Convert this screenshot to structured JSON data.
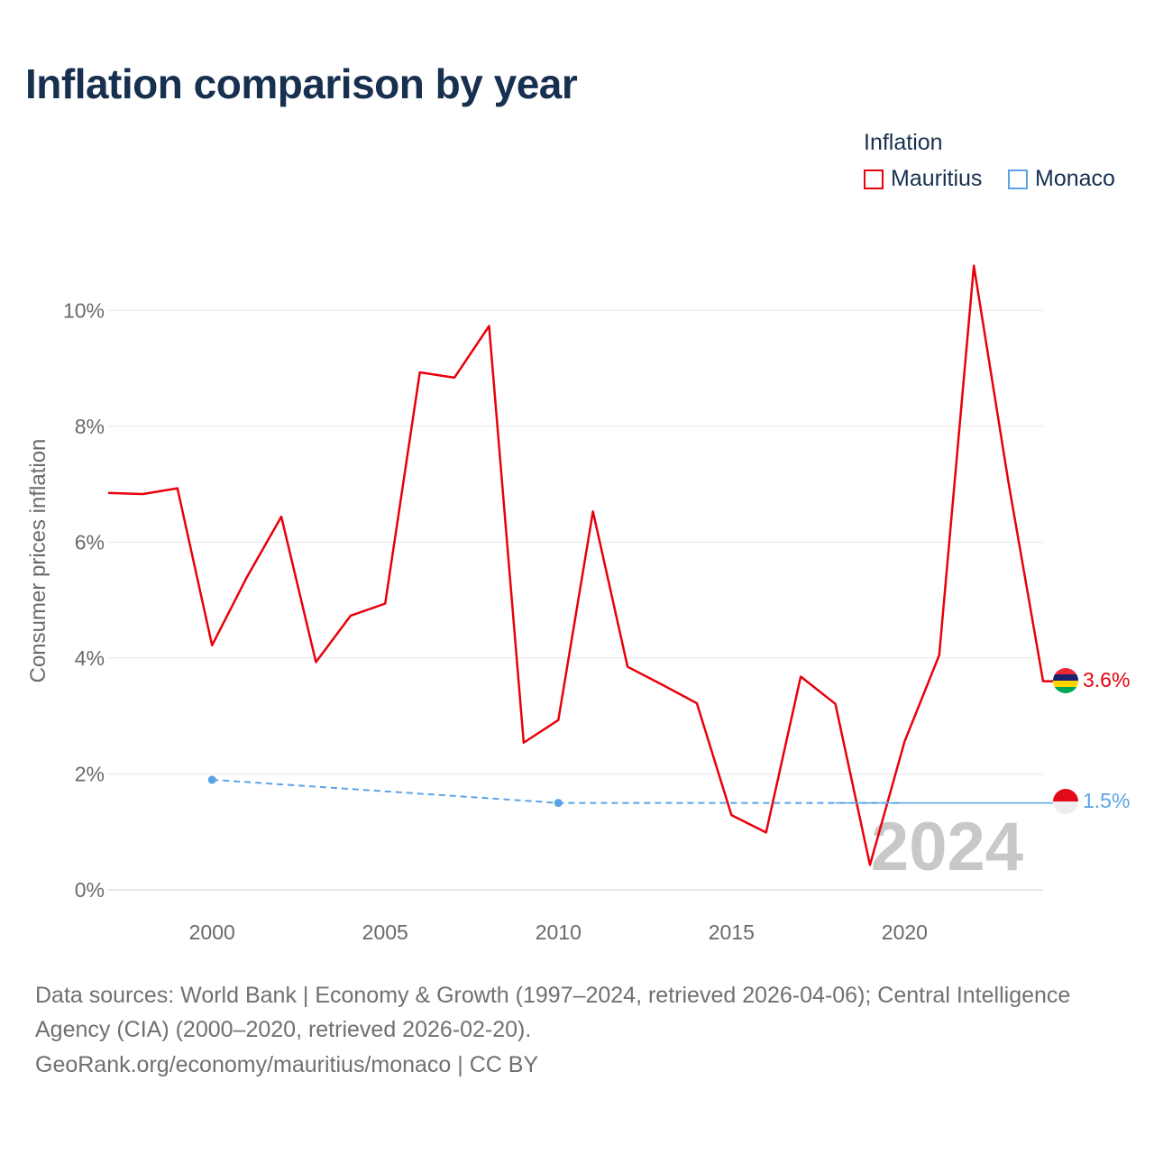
{
  "title": "Inflation comparison by year",
  "legend": {
    "title": "Inflation",
    "items": [
      {
        "label": "Mauritius",
        "color": "#e8000b"
      },
      {
        "label": "Monaco",
        "color": "#5ba3e6"
      }
    ]
  },
  "year_label": "2024",
  "footer": {
    "line1": "Data sources: World Bank | Economy & Growth (1997–2024, retrieved 2026-04-06); Central Intelligence",
    "line2": "Agency (CIA) (2000–2020, retrieved 2026-02-20).",
    "line3": "GeoRank.org/economy/mauritius/monaco | CC BY"
  },
  "chart_data": {
    "type": "line",
    "title": "Inflation comparison by year",
    "xlabel": "",
    "ylabel": "Consumer prices inflation",
    "xlim": [
      1997,
      2024
    ],
    "ylim": [
      0,
      11
    ],
    "x_ticks": [
      2000,
      2005,
      2010,
      2015,
      2020
    ],
    "y_ticks": [
      0,
      2,
      4,
      6,
      8,
      10
    ],
    "y_tick_labels": [
      "0%",
      "2%",
      "4%",
      "6%",
      "8%",
      "10%"
    ],
    "grid": true,
    "legend_position": "top-right",
    "series": [
      {
        "name": "Mauritius",
        "color": "#e8000b",
        "style": "solid",
        "end_label": "3.6%",
        "points": [
          [
            1997,
            6.85
          ],
          [
            1998,
            6.83
          ],
          [
            1999,
            6.93
          ],
          [
            2000,
            4.22
          ],
          [
            2001,
            5.39
          ],
          [
            2002,
            6.44
          ],
          [
            2003,
            3.93
          ],
          [
            2004,
            4.73
          ],
          [
            2005,
            4.94
          ],
          [
            2006,
            8.93
          ],
          [
            2007,
            8.84
          ],
          [
            2008,
            9.73
          ],
          [
            2009,
            2.54
          ],
          [
            2010,
            2.93
          ],
          [
            2011,
            6.53
          ],
          [
            2012,
            3.85
          ],
          [
            2013,
            3.54
          ],
          [
            2014,
            3.22
          ],
          [
            2015,
            1.29
          ],
          [
            2016,
            0.99
          ],
          [
            2017,
            3.68
          ],
          [
            2018,
            3.21
          ],
          [
            2019,
            0.43
          ],
          [
            2020,
            2.56
          ],
          [
            2021,
            4.05
          ],
          [
            2022,
            10.77
          ],
          [
            2023,
            7.03
          ],
          [
            2024,
            3.6
          ]
        ]
      },
      {
        "name": "Monaco",
        "color": "#5ba3e6",
        "style": "dashed",
        "end_label": "1.5%",
        "points": [
          [
            2000,
            1.9
          ],
          [
            2010,
            1.5
          ],
          [
            2020,
            1.5
          ],
          [
            2024,
            1.5
          ]
        ]
      }
    ]
  }
}
